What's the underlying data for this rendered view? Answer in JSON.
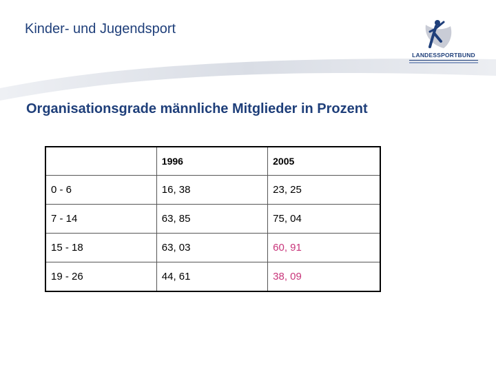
{
  "header": {
    "title": "Kinder- und Jugendsport",
    "logo": {
      "icon": "running-figure-logo-icon",
      "text": "LANDESSPORTBUND"
    }
  },
  "subtitle": "Organisationsgrade männliche Mitglieder in Prozent",
  "table": {
    "columns": [
      "",
      "1996",
      "2005"
    ],
    "rows": [
      {
        "age": "0 - 6",
        "y1996": "16, 38",
        "y2005": "23, 25",
        "highlight2005": false
      },
      {
        "age": "7 - 14",
        "y1996": "63, 85",
        "y2005": "75, 04",
        "highlight2005": false
      },
      {
        "age": "15 - 18",
        "y1996": "63, 03",
        "y2005": "60, 91",
        "highlight2005": true
      },
      {
        "age": "19 - 26",
        "y1996": "44, 61",
        "y2005": "38, 09",
        "highlight2005": true
      }
    ]
  },
  "colors": {
    "title": "#1f3f7a",
    "highlight": "#c8357a",
    "swoosh": "#dfe3ea"
  }
}
